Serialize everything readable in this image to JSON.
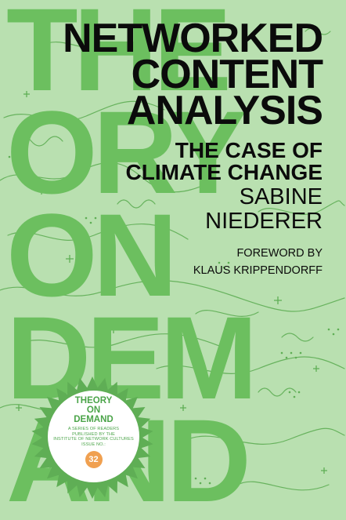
{
  "colors": {
    "background": "#b9e0b0",
    "pattern_green": "#5fae55",
    "big_text_green": "#6cbf5f",
    "title_black": "#0b0b0b",
    "badge_white": "#ffffff",
    "badge_text_green": "#4ba449",
    "issue_orange": "#f0a050"
  },
  "background_words": [
    "THE",
    "ORY",
    "ON",
    "DEM",
    "AND"
  ],
  "title_lines": [
    "NETWORKED",
    "CONTENT",
    "ANALYSIS"
  ],
  "subtitle_lines": [
    "THE CASE OF",
    "CLIMATE CHANGE"
  ],
  "author_lines": [
    "SABINE",
    "NIEDERER"
  ],
  "foreword_lines": [
    "FOREWORD BY",
    "KLAUS KRIPPENDORFF"
  ],
  "badge": {
    "series_lines": [
      "THEORY",
      "ON",
      "DEMAND"
    ],
    "description_lines": [
      "A SERIES OF READERS",
      "PUBLISHED BY THE",
      "INSTITUTE OF NETWORK CULTURES",
      "ISSUE NO.:"
    ],
    "issue_number": "32"
  },
  "decorations": {
    "pattern": "map-contour-lines-and-dots",
    "burst": "starburst-seal"
  }
}
